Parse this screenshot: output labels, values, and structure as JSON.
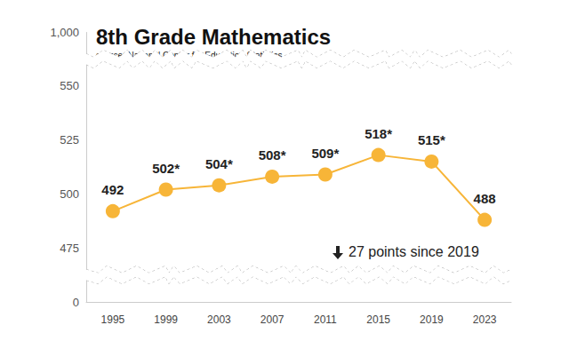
{
  "chart_data": {
    "type": "line",
    "title": "8th Grade Mathematics",
    "subtitle": "source: National Center for Education Statistics",
    "categories": [
      "1995",
      "1999",
      "2003",
      "2007",
      "2011",
      "2015",
      "2019",
      "2023"
    ],
    "values": [
      492,
      502,
      504,
      508,
      509,
      518,
      515,
      488
    ],
    "value_labels": [
      "492",
      "502*",
      "504*",
      "508*",
      "509*",
      "518*",
      "515*",
      "488"
    ],
    "color": "#f7b538",
    "marker": "circle",
    "line_style": "solid",
    "ylim": [
      0,
      1000
    ],
    "yticks": [
      0,
      475,
      500,
      525,
      550,
      {
        "value": 1000,
        "label": "1,000"
      }
    ],
    "grid": false,
    "data_labels": true,
    "annotations": [
      "27 points since 2019"
    ]
  }
}
